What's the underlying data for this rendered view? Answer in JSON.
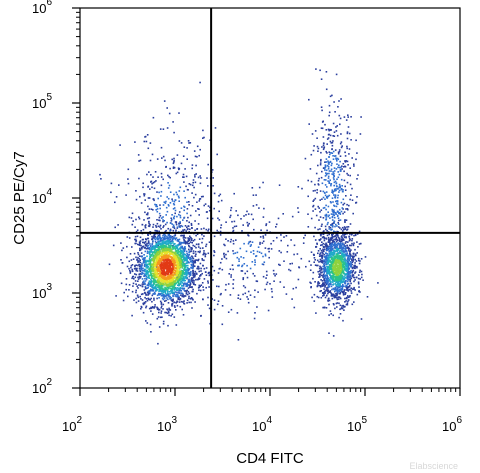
{
  "chart_data": {
    "type": "scatter",
    "subtype": "flow-cytometry-density-dot-plot",
    "xlabel": "CD4 FITC",
    "ylabel": "CD25 PE/Cy7",
    "x_scale": "log",
    "y_scale": "log",
    "xlim": [
      100,
      1000000
    ],
    "ylim": [
      100,
      1000000
    ],
    "x_ticks": [
      {
        "base": "10",
        "exp": "2",
        "value": 100
      },
      {
        "base": "10",
        "exp": "3",
        "value": 1000
      },
      {
        "base": "10",
        "exp": "4",
        "value": 10000
      },
      {
        "base": "10",
        "exp": "5",
        "value": 100000
      },
      {
        "base": "10",
        "exp": "6",
        "value": 1000000
      }
    ],
    "y_ticks": [
      {
        "base": "10",
        "exp": "2",
        "value": 100
      },
      {
        "base": "10",
        "exp": "3",
        "value": 1000
      },
      {
        "base": "10",
        "exp": "4",
        "value": 10000
      },
      {
        "base": "10",
        "exp": "5",
        "value": 100000
      },
      {
        "base": "10",
        "exp": "6",
        "value": 1000000
      }
    ],
    "quadrant_gates": {
      "x": 2400,
      "y": 4300
    },
    "populations": [
      {
        "center_x": 800,
        "center_y": 1900,
        "spread_log_x": 0.16,
        "spread_log_y": 0.2,
        "relative_density": 1.0
      },
      {
        "center_x": 50000,
        "center_y": 1900,
        "spread_log_x": 0.1,
        "spread_log_y": 0.18,
        "relative_density": 0.55
      },
      {
        "center_x": 45000,
        "center_y": 12000,
        "spread_log_x": 0.12,
        "spread_log_y": 0.45,
        "relative_density": 0.2
      },
      {
        "center_x": 900,
        "center_y": 8000,
        "spread_log_x": 0.25,
        "spread_log_y": 0.4,
        "relative_density": 0.15
      },
      {
        "center_x": 6000,
        "center_y": 2500,
        "spread_log_x": 0.35,
        "spread_log_y": 0.3,
        "relative_density": 0.12
      }
    ],
    "density_colors": [
      "#2b3f9e",
      "#2f6fd0",
      "#1fa9c9",
      "#2cc48a",
      "#8fd23e",
      "#e6e22c",
      "#f59a1e",
      "#e23a16"
    ],
    "grid": false,
    "legend": "none"
  },
  "watermark": "Elabscience"
}
